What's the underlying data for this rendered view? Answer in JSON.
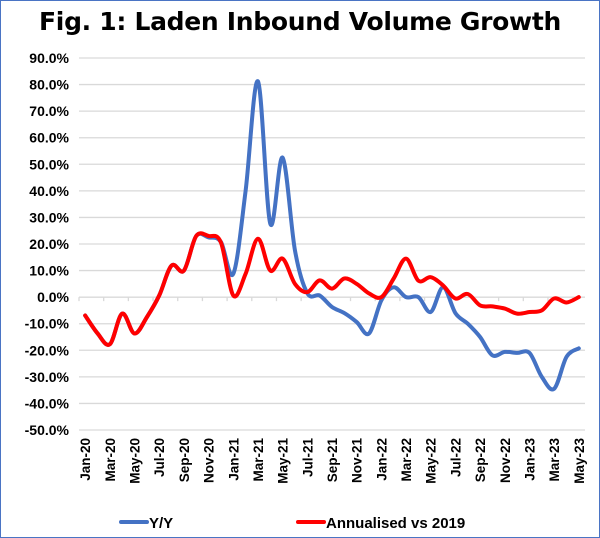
{
  "chart_data": {
    "type": "line",
    "title": "Fig. 1: Laden Inbound Volume Growth",
    "xlabel": "",
    "ylabel": "",
    "ylim": [
      -50,
      90
    ],
    "y_ticks": [
      "90.0%",
      "80.0%",
      "70.0%",
      "60.0%",
      "50.0%",
      "40.0%",
      "30.0%",
      "20.0%",
      "10.0%",
      "0.0%",
      "-10.0%",
      "-20.0%",
      "-30.0%",
      "-40.0%",
      "-50.0%"
    ],
    "y_tick_values": [
      90,
      80,
      70,
      60,
      50,
      40,
      30,
      20,
      10,
      0,
      -10,
      -20,
      -30,
      -40,
      -50
    ],
    "x": [
      "Jan-20",
      "Feb-20",
      "Mar-20",
      "Apr-20",
      "May-20",
      "Jun-20",
      "Jul-20",
      "Aug-20",
      "Sep-20",
      "Oct-20",
      "Nov-20",
      "Dec-20",
      "Jan-21",
      "Feb-21",
      "Mar-21",
      "Apr-21",
      "May-21",
      "Jun-21",
      "Jul-21",
      "Aug-21",
      "Sep-21",
      "Oct-21",
      "Nov-21",
      "Dec-21",
      "Jan-22",
      "Feb-22",
      "Mar-22",
      "Apr-22",
      "May-22",
      "Jun-22",
      "Jul-22",
      "Aug-22",
      "Sep-22",
      "Oct-22",
      "Nov-22",
      "Dec-22",
      "Jan-23",
      "Feb-23",
      "Mar-23",
      "Apr-23",
      "May-23"
    ],
    "x_tick_labels": [
      "Jan-20",
      "Mar-20",
      "May-20",
      "Jul-20",
      "Sep-20",
      "Nov-20",
      "Jan-21",
      "Mar-21",
      "May-21",
      "Jul-21",
      "Sep-21",
      "Nov-21",
      "Jan-22",
      "Mar-22",
      "May-22",
      "Jul-22",
      "Sep-22",
      "Nov-22",
      "Jan-23",
      "Mar-23",
      "May-23"
    ],
    "grid": true,
    "legend_position": "bottom",
    "series": [
      {
        "name": "Y/Y",
        "color": "#4472C4",
        "values": [
          -6.9,
          -13.6,
          -17.7,
          -6.2,
          -13.7,
          -7.5,
          0.6,
          11.9,
          10,
          23,
          22.5,
          20.8,
          8.8,
          40,
          81.2,
          27.6,
          52.5,
          17.5,
          1.5,
          0.6,
          -3.7,
          -6,
          -9.4,
          -13.7,
          -1.2,
          3.7,
          0,
          0,
          -5.6,
          3.7,
          -6,
          -10,
          -15,
          -21.9,
          -20.6,
          -21,
          -21,
          -30,
          -34.5,
          -22.5,
          -19.3
        ]
      },
      {
        "name": "Annualised vs 2019",
        "color": "#FF0000",
        "values": [
          -6.9,
          -13.6,
          -17.7,
          -6.2,
          -13.7,
          -7.5,
          0.6,
          11.9,
          10,
          23,
          23,
          20.6,
          0.6,
          8.8,
          22,
          10,
          14.5,
          5,
          1.9,
          6.3,
          3.2,
          7,
          5,
          1.4,
          0,
          7,
          14.5,
          6.2,
          7.5,
          4.4,
          -0.5,
          1.2,
          -3.1,
          -3.5,
          -4.3,
          -6.2,
          -5.6,
          -5,
          -0.5,
          -2,
          0
        ]
      }
    ]
  }
}
